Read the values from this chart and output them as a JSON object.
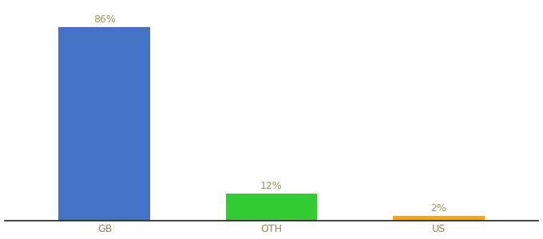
{
  "categories": [
    "GB",
    "OTH",
    "US"
  ],
  "values": [
    86,
    12,
    2
  ],
  "bar_colors": [
    "#4472c4",
    "#33cc33",
    "#ffa500"
  ],
  "labels": [
    "86%",
    "12%",
    "2%"
  ],
  "label_color": "#999966",
  "tick_color": "#888855",
  "background_color": "#ffffff",
  "ylim": [
    0,
    96
  ],
  "label_fontsize": 9,
  "tick_fontsize": 9,
  "bar_width": 0.55
}
